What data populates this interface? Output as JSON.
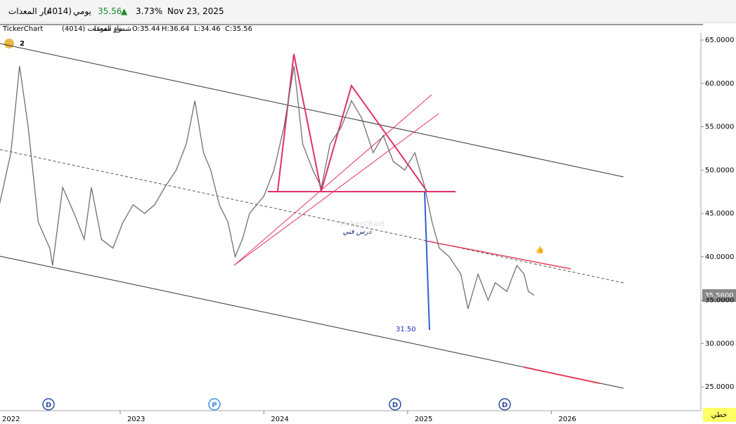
{
  "header": {
    "name": "دار المعدات",
    "symbol": "(4014)",
    "period": "يومي",
    "price": "35.56",
    "change": "3.73%",
    "date": "Nov 23, 2025"
  },
  "info": {
    "source": "TickerChart",
    "name": "دار المعدات (4014)",
    "style": "شموع مفرغة",
    "open": "O:35.44",
    "high": "H:36.64",
    "low": "L:34.46",
    "close": "C:35.56"
  },
  "chart_data": {
    "type": "line",
    "x": [
      2022.16,
      2022.24,
      2022.3,
      2022.36,
      2022.43,
      2022.51,
      2022.53,
      2022.6,
      2022.68,
      2022.75,
      2022.8,
      2022.87,
      2022.95,
      2023.02,
      2023.09,
      2023.17,
      2023.24,
      2023.31,
      2023.39,
      2023.46,
      2023.52,
      2023.58,
      2023.63,
      2023.69,
      2023.75,
      2023.8,
      2023.85,
      2023.9,
      2024.0,
      2024.07,
      2024.14,
      2024.21,
      2024.27,
      2024.34,
      2024.4,
      2024.46,
      2024.54,
      2024.61,
      2024.68,
      2024.76,
      2024.83,
      2024.9,
      2024.98,
      2025.05,
      2025.12,
      2025.17,
      2025.22,
      2025.29,
      2025.37,
      2025.42,
      2025.49,
      2025.56,
      2025.61,
      2025.69,
      2025.76,
      2025.81,
      2025.84,
      2025.88
    ],
    "series": [
      {
        "name": "4014",
        "color": "#707070",
        "values": [
          46,
          52,
          62,
          55,
          44,
          41,
          39,
          48,
          45,
          42,
          48,
          42,
          41,
          44,
          46,
          45,
          46,
          48,
          50,
          53,
          58,
          52,
          50,
          46,
          44,
          40,
          42,
          45,
          47,
          50,
          55,
          62,
          53,
          50,
          48,
          53,
          55,
          58,
          56,
          52,
          54,
          51,
          50,
          52,
          48,
          44,
          41,
          40,
          38,
          34,
          38,
          35,
          37,
          36,
          39,
          38,
          36,
          35.56
        ]
      }
    ],
    "xlim": [
      2022.164,
      2027.04
    ],
    "xticks": [
      2022,
      2023,
      2024,
      2025,
      2026
    ],
    "ylim": [
      22.25,
      65.73
    ],
    "yticks": [
      {
        "value": 25,
        "label": "25.0000"
      },
      {
        "value": 30,
        "label": "30.0000"
      },
      {
        "value": 35,
        "label": "35.0000"
      },
      {
        "value": 40,
        "label": "40.0000"
      },
      {
        "value": 45,
        "label": "45.0000"
      },
      {
        "value": 50,
        "label": "50.0000"
      },
      {
        "value": 55,
        "label": "55.0000"
      },
      {
        "value": 60,
        "label": "60.0000"
      },
      {
        "value": 65,
        "label": "65.0000"
      }
    ],
    "last_price_label": "35.5600",
    "annotations": {
      "target": "31.50",
      "note": "درس فني",
      "watermark": "TickerChart",
      "alerts": "2"
    },
    "events": [
      "D",
      "P",
      "D",
      "D"
    ],
    "mode_button": "خطي"
  }
}
